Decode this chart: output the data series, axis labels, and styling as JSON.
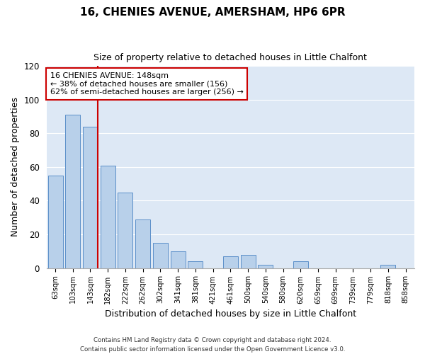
{
  "title": "16, CHENIES AVENUE, AMERSHAM, HP6 6PR",
  "subtitle": "Size of property relative to detached houses in Little Chalfont",
  "xlabel": "Distribution of detached houses by size in Little Chalfont",
  "ylabel": "Number of detached properties",
  "bar_labels": [
    "63sqm",
    "103sqm",
    "143sqm",
    "182sqm",
    "222sqm",
    "262sqm",
    "302sqm",
    "341sqm",
    "381sqm",
    "421sqm",
    "461sqm",
    "500sqm",
    "540sqm",
    "580sqm",
    "620sqm",
    "659sqm",
    "699sqm",
    "739sqm",
    "779sqm",
    "818sqm",
    "858sqm"
  ],
  "bar_values": [
    55,
    91,
    84,
    61,
    45,
    29,
    15,
    10,
    4,
    0,
    7,
    8,
    2,
    0,
    4,
    0,
    0,
    0,
    0,
    2,
    0
  ],
  "bar_color": "#b8d0ea",
  "bar_edge_color": "#5b8fc9",
  "vline_x": 2,
  "vline_color": "#cc0000",
  "ylim": [
    0,
    120
  ],
  "yticks": [
    0,
    20,
    40,
    60,
    80,
    100,
    120
  ],
  "annotation_title": "16 CHENIES AVENUE: 148sqm",
  "annotation_line1": "← 38% of detached houses are smaller (156)",
  "annotation_line2": "62% of semi-detached houses are larger (256) →",
  "annotation_box_facecolor": "#ffffff",
  "annotation_box_edgecolor": "#cc0000",
  "footer_line1": "Contains HM Land Registry data © Crown copyright and database right 2024.",
  "footer_line2": "Contains public sector information licensed under the Open Government Licence v3.0.",
  "fig_facecolor": "#ffffff",
  "plot_bg_color": "#dde8f5",
  "grid_color": "#ffffff",
  "title_fontsize": 11,
  "subtitle_fontsize": 9,
  "ylabel_fontsize": 9,
  "xlabel_fontsize": 9
}
